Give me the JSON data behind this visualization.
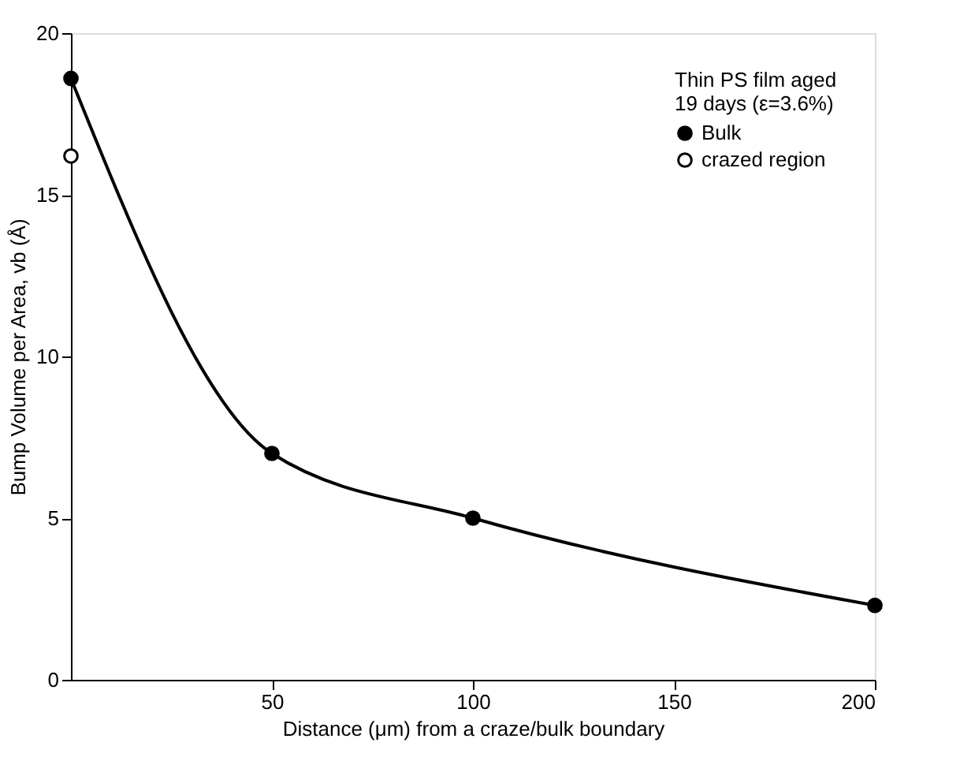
{
  "chart_data": {
    "type": "line",
    "xlabel": "Distance (μm) from a craze/bulk boundary",
    "ylabel": "Bump Volume per Area, vb (Å)",
    "legend_title": "Thin PS film aged\n19 days (ε=3.6%)",
    "series": [
      {
        "name": "Bulk",
        "color": "#000000",
        "x": [
          0,
          50,
          100,
          200
        ],
        "values": [
          18.6,
          7.0,
          5.0,
          2.3
        ]
      },
      {
        "name": "crazed region",
        "type": "scatter",
        "color": "#000000",
        "x": [
          0
        ],
        "values": [
          16.2
        ]
      }
    ],
    "xlim": [
      0,
      200
    ],
    "xticks": [
      50,
      100,
      150,
      200
    ],
    "ylim": [
      0,
      20
    ],
    "yticks": [
      0,
      5,
      10,
      15,
      20
    ],
    "marker": "circle",
    "line_style": "solid",
    "grid": false,
    "legend": "top right"
  }
}
